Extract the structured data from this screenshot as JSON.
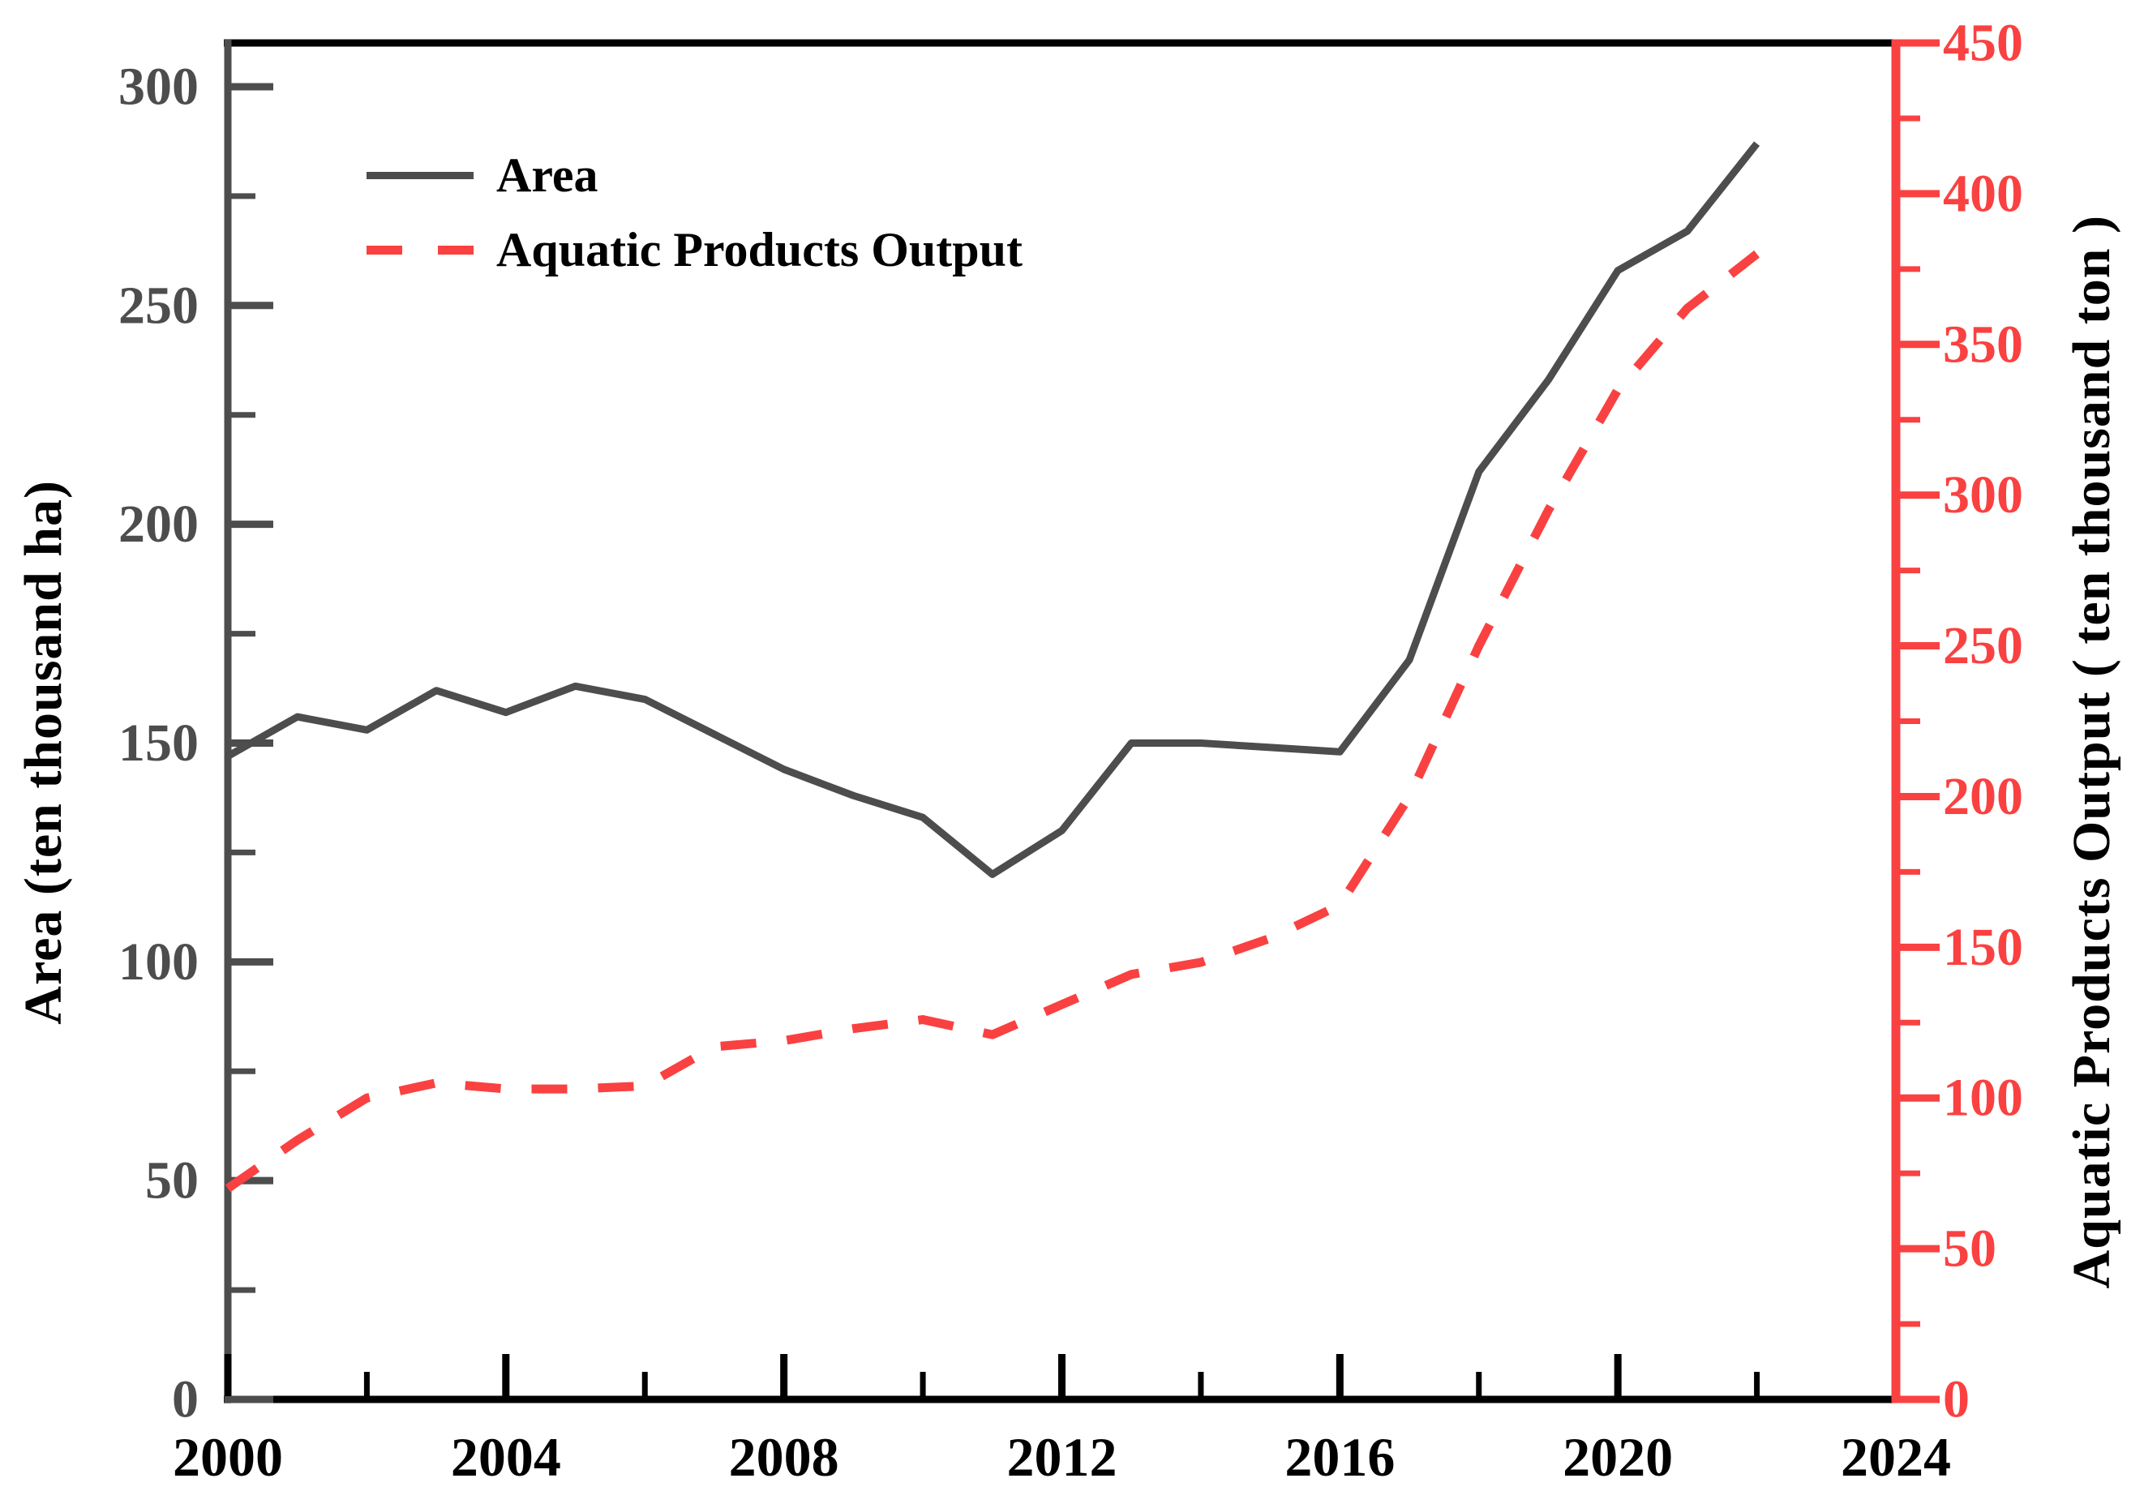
{
  "chart_data": {
    "type": "line",
    "title": "",
    "x": [
      2000,
      2001,
      2002,
      2003,
      2004,
      2005,
      2006,
      2007,
      2008,
      2009,
      2010,
      2011,
      2012,
      2013,
      2014,
      2015,
      2016,
      2017,
      2018,
      2019,
      2020,
      2021,
      2022
    ],
    "series": [
      {
        "name": "Area",
        "axis": "left",
        "color": "#4d4d4d",
        "line_style": "solid",
        "values": [
          147,
          156,
          153,
          162,
          157,
          163,
          160,
          152,
          144,
          138,
          133,
          120,
          130,
          150,
          150,
          149,
          148,
          169,
          212,
          233,
          258,
          267,
          287
        ]
      },
      {
        "name": "Aquatic Products Output",
        "axis": "right",
        "color": "#fa4141",
        "line_style": "dashed",
        "values": [
          70,
          86,
          100,
          105,
          103,
          103,
          104,
          117,
          119,
          123,
          126,
          121,
          131,
          141,
          145,
          153,
          164,
          200,
          250,
          295,
          335,
          362,
          380
        ]
      }
    ],
    "x_axis": {
      "range": [
        2000,
        2024
      ],
      "ticks": [
        2000,
        2004,
        2008,
        2012,
        2016,
        2020,
        2024
      ],
      "minor_ticks": [
        2002,
        2006,
        2010,
        2014,
        2018,
        2022
      ],
      "color": "#000000"
    },
    "left_axis": {
      "title": "Area (ten thousand ha)",
      "range": [
        0,
        310
      ],
      "ticks": [
        0,
        50,
        100,
        150,
        200,
        250,
        300
      ],
      "minor_ticks": [
        25,
        75,
        125,
        175,
        225,
        275
      ],
      "color": "#4d4d4d",
      "title_color": "#000000"
    },
    "right_axis": {
      "title": "Aquatic Products Output ( ten thousand ton )",
      "range": [
        0,
        450
      ],
      "ticks": [
        0,
        50,
        100,
        150,
        200,
        250,
        300,
        350,
        400,
        450
      ],
      "minor_ticks": [
        25,
        75,
        125,
        175,
        225,
        275,
        325,
        375,
        425
      ],
      "color": "#fa4141",
      "title_color": "#000000"
    },
    "legend": {
      "position": "top-left",
      "entries": [
        {
          "label": "Area",
          "swatch": "solid-dark"
        },
        {
          "label": "Aquatic Products Output",
          "swatch": "dashed-red"
        }
      ]
    },
    "grid": false,
    "background": "#ffffff"
  }
}
